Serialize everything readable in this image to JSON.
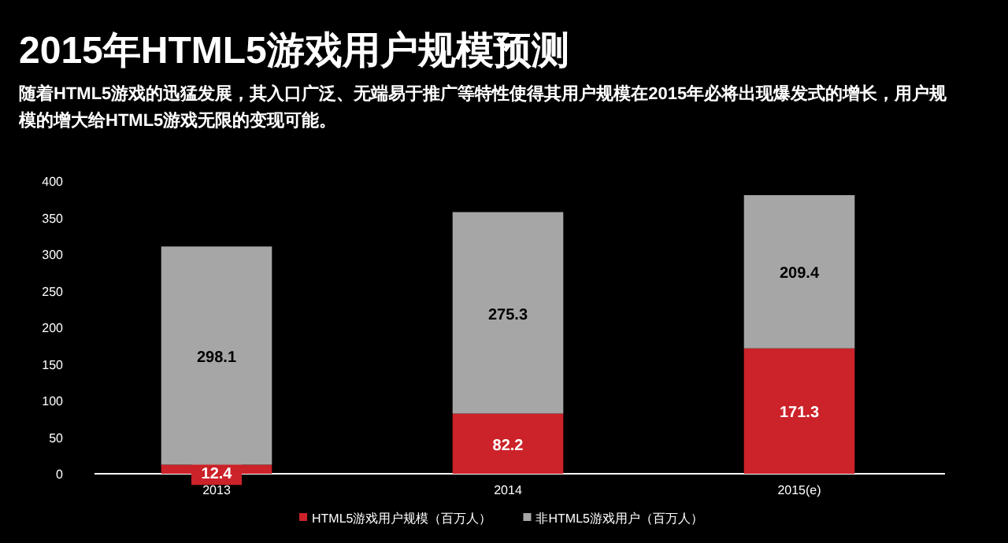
{
  "chart_data": {
    "type": "bar",
    "stacked": true,
    "title": "2015年HTML5游戏用户规模预测",
    "subtitle": "随着HTML5游戏的迅猛发展，其入口广泛、无端易于推广等特性使得其用户规模在2015年必将出现爆发式的增长，用户规模的增大给HTML5游戏无限的变现可能。",
    "categories": [
      "2013",
      "2014",
      "2015(e)"
    ],
    "series": [
      {
        "name": "HTML5游戏用户规模（百万人）",
        "color": "#cc2229",
        "values": [
          12.4,
          82.2,
          171.3
        ]
      },
      {
        "name": "非HTML5游戏用户（百万人）",
        "color": "#a6a6a6",
        "values": [
          298.1,
          275.3,
          209.4
        ]
      }
    ],
    "ylim": [
      0,
      400
    ],
    "yticks": [
      0,
      50,
      100,
      150,
      200,
      250,
      300,
      350,
      400
    ],
    "data_labels": true,
    "grid": false,
    "legend": "bottom"
  }
}
